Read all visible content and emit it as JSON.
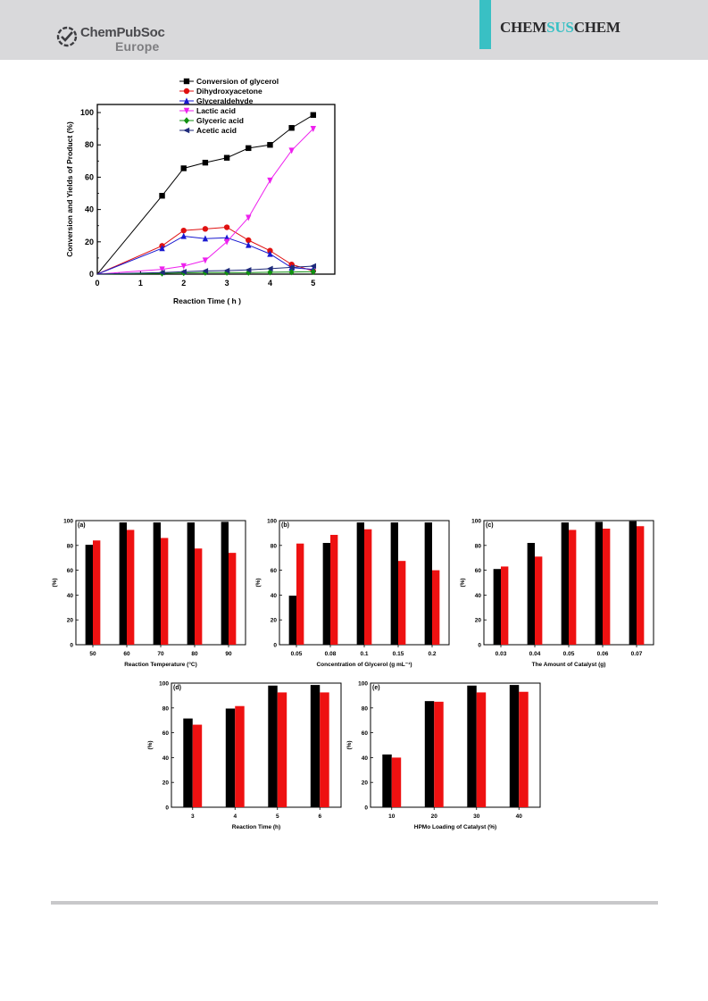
{
  "header": {
    "publisher_brand": "ChemPubSoc",
    "publisher_region": "Europe",
    "journal_parts": [
      "CHEM",
      "SUS",
      "CHEM"
    ],
    "colors": {
      "band": "#d9d9db",
      "accent": "#39c0c4"
    }
  },
  "chart_data": [
    {
      "type": "line",
      "ylabel": "Conversion and Yields of Product (%)",
      "xlabel": "Reaction Time ( h )",
      "xlim": [
        0,
        5.5
      ],
      "ylim": [
        0,
        105
      ],
      "xticks": [
        0,
        1,
        2,
        3,
        4,
        5
      ],
      "yticks": [
        0,
        20,
        40,
        60,
        80,
        100
      ],
      "legend_position": "top-left",
      "grid": false,
      "x": [
        0,
        1.5,
        2,
        2.5,
        3,
        3.5,
        4,
        4.5,
        5
      ],
      "series": [
        {
          "name": "Conversion of glycerol",
          "color": "#000000",
          "marker": "square",
          "values": [
            0,
            48.5,
            65.5,
            69,
            72,
            78,
            80,
            90.5,
            98.5
          ]
        },
        {
          "name": "Dihydroxyacetone",
          "color": "#e01010",
          "marker": "circle",
          "values": [
            0,
            17.5,
            27,
            28,
            29,
            21,
            14.5,
            6,
            2
          ]
        },
        {
          "name": "Glyceraldehyde",
          "color": "#1818d0",
          "marker": "triangle-up",
          "values": [
            0,
            16,
            23.5,
            22,
            22.5,
            18,
            12.5,
            4,
            3
          ]
        },
        {
          "name": "Lactic acid",
          "color": "#ee22ee",
          "marker": "triangle-down",
          "values": [
            0,
            3,
            5,
            8.5,
            20,
            35,
            58,
            76.5,
            90
          ]
        },
        {
          "name": "Glyceric acid",
          "color": "#109010",
          "marker": "diamond",
          "values": [
            0,
            0.5,
            0.8,
            1,
            1,
            1,
            1.2,
            1.3,
            1.5
          ]
        },
        {
          "name": "Acetic acid",
          "color": "#1e2a7a",
          "marker": "triangle-left",
          "values": [
            0,
            1,
            1.5,
            2,
            2.2,
            2.6,
            3.4,
            4.2,
            5
          ]
        }
      ]
    },
    {
      "type": "bar",
      "panel_label": "(a)",
      "xlabel": "Reaction Temperature (°C)",
      "ylabel": "(%)",
      "categories": [
        "50",
        "60",
        "70",
        "80",
        "90"
      ],
      "ylim": [
        0,
        100
      ],
      "yticks": [
        0,
        20,
        40,
        60,
        80,
        100
      ],
      "series": [
        {
          "color": "#000000",
          "values": [
            80.5,
            98.5,
            98.5,
            98.5,
            99
          ]
        },
        {
          "color": "#ee1111",
          "values": [
            84,
            92.5,
            86,
            77.5,
            74
          ]
        }
      ]
    },
    {
      "type": "bar",
      "panel_label": "(b)",
      "xlabel": "Concentration of Glycerol (g mL⁻¹)",
      "ylabel": "(%)",
      "categories": [
        "0.05",
        "0.08",
        "0.1",
        "0.15",
        "0.2"
      ],
      "ylim": [
        0,
        100
      ],
      "yticks": [
        0,
        20,
        40,
        60,
        80,
        100
      ],
      "series": [
        {
          "color": "#000000",
          "values": [
            39.5,
            82,
            98.5,
            98.5,
            98.5
          ]
        },
        {
          "color": "#ee1111",
          "values": [
            81.5,
            88.5,
            93,
            67.5,
            60
          ]
        }
      ]
    },
    {
      "type": "bar",
      "panel_label": "(c)",
      "xlabel": "The Amount of Catalyst (g)",
      "ylabel": "(%)",
      "categories": [
        "0.03",
        "0.04",
        "0.05",
        "0.06",
        "0.07"
      ],
      "ylim": [
        0,
        100
      ],
      "yticks": [
        0,
        20,
        40,
        60,
        80,
        100
      ],
      "series": [
        {
          "color": "#000000",
          "values": [
            61,
            82,
            98.5,
            99,
            99.5
          ]
        },
        {
          "color": "#ee1111",
          "values": [
            63,
            71,
            92.5,
            93.5,
            95.5
          ]
        }
      ]
    },
    {
      "type": "bar",
      "panel_label": "(d)",
      "xlabel": "Reaction Time (h)",
      "ylabel": "(%)",
      "categories": [
        "3",
        "4",
        "5",
        "6"
      ],
      "ylim": [
        0,
        100
      ],
      "yticks": [
        0,
        20,
        40,
        60,
        80,
        100
      ],
      "series": [
        {
          "color": "#000000",
          "values": [
            71.5,
            79.5,
            98,
            98.5
          ]
        },
        {
          "color": "#ee1111",
          "values": [
            66.5,
            81.5,
            92.5,
            92.5
          ]
        }
      ]
    },
    {
      "type": "bar",
      "panel_label": "(e)",
      "xlabel": "HPMo Loading of Catalyst (%)",
      "ylabel": "(%)",
      "categories": [
        "10",
        "20",
        "30",
        "40"
      ],
      "ylim": [
        0,
        100
      ],
      "yticks": [
        0,
        20,
        40,
        60,
        80,
        100
      ],
      "series": [
        {
          "color": "#000000",
          "values": [
            42.5,
            85.5,
            98,
            98.5
          ]
        },
        {
          "color": "#ee1111",
          "values": [
            40,
            85,
            92.5,
            93
          ]
        }
      ]
    }
  ]
}
